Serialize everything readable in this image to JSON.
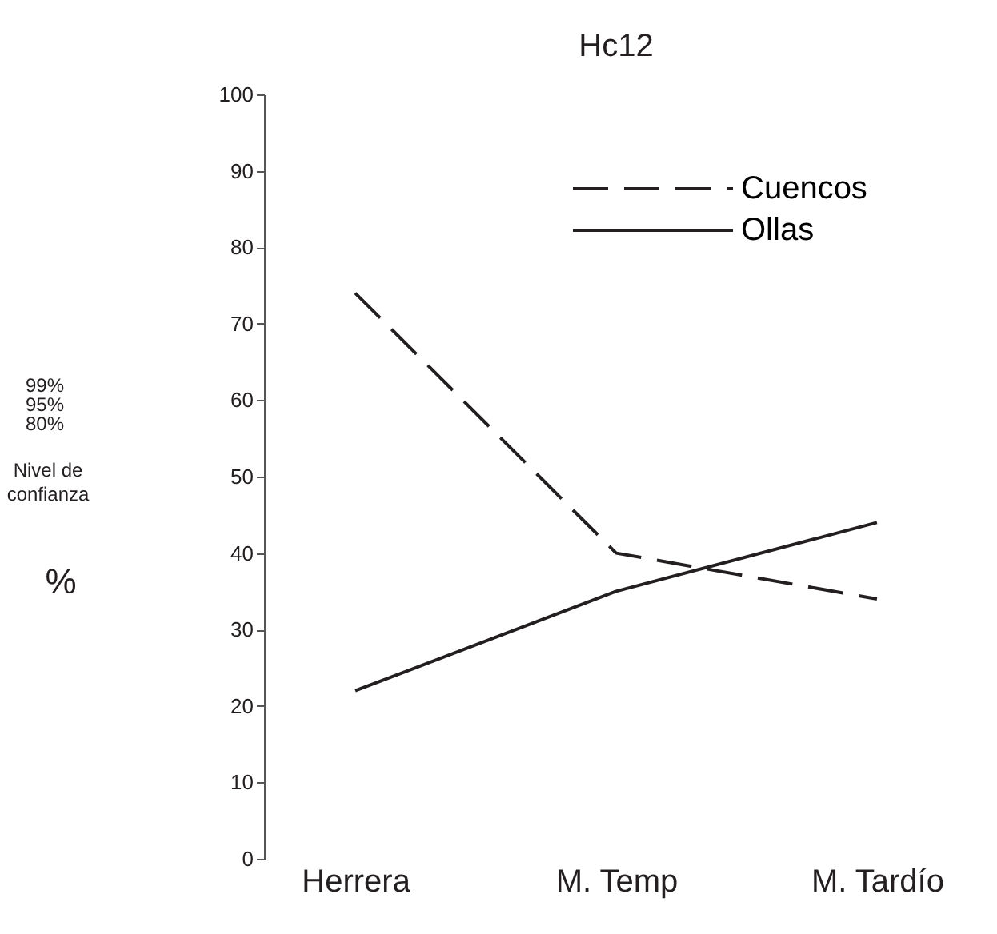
{
  "chart_data": {
    "type": "line",
    "title": "Hc12",
    "ylabel": "%",
    "categories": [
      "Herrera",
      "M. Temp",
      "M. Tardío"
    ],
    "series": [
      {
        "name": "Cuencos",
        "color": "#231f20",
        "line_style": "dashed",
        "values": [
          74,
          40,
          34
        ]
      },
      {
        "name": "Ollas",
        "color": "#231f20",
        "line_style": "solid",
        "values": [
          22,
          35,
          44
        ]
      }
    ],
    "ylim": [
      0,
      100
    ],
    "yticks": [
      0,
      10,
      20,
      30,
      40,
      50,
      60,
      70,
      80,
      90,
      100
    ],
    "grid": false,
    "legend": "top right",
    "marker": "none",
    "annotations": [
      "99%",
      "95%",
      "80%",
      "Nivel de",
      "confianza"
    ]
  }
}
